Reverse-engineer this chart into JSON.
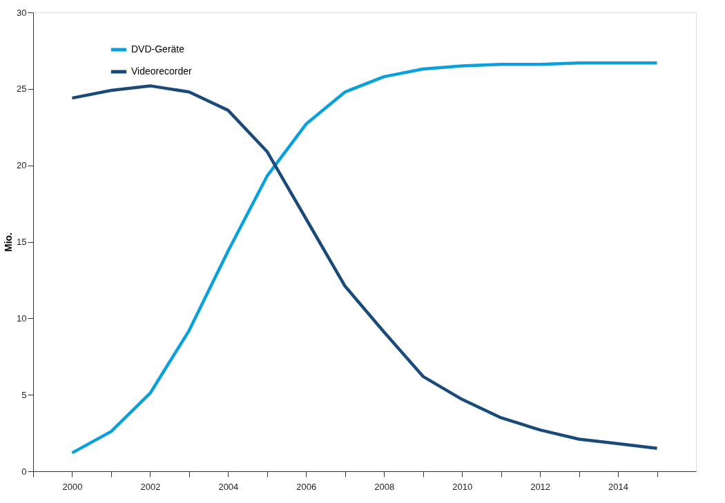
{
  "chart_data": {
    "type": "line",
    "ylabel": "Mio.",
    "x": [
      2000,
      2001,
      2002,
      2003,
      2004,
      2005,
      2006,
      2007,
      2008,
      2009,
      2010,
      2011,
      2012,
      2013,
      2014,
      2015
    ],
    "xlim": [
      1999,
      2016
    ],
    "xticks": [
      {
        "value": 1999,
        "label": null
      },
      2000,
      {
        "value": 2001,
        "label": null
      },
      2002,
      {
        "value": 2003,
        "label": null
      },
      2004,
      {
        "value": 2005,
        "label": null
      },
      2006,
      {
        "value": 2007,
        "label": null
      },
      2008,
      {
        "value": 2009,
        "label": null
      },
      2010,
      {
        "value": 2011,
        "label": null
      },
      2012,
      {
        "value": 2013,
        "label": null
      },
      2014,
      {
        "value": 2015,
        "label": null
      }
    ],
    "ylim": [
      0,
      30
    ],
    "yticks": [
      0,
      5,
      10,
      15,
      20,
      25,
      30
    ],
    "grid": false,
    "legend": "top left",
    "marker": "none",
    "line_style": "solid",
    "series": [
      {
        "name": "DVD-Geräte",
        "color": "#0aa0dc",
        "values": [
          1.2,
          2.6,
          5.1,
          9.2,
          14.4,
          19.3,
          22.7,
          24.8,
          25.8,
          26.3,
          26.5,
          26.6,
          26.6,
          26.7,
          26.7,
          26.7
        ]
      },
      {
        "name": "Videorecorder",
        "color": "#1a4a7a",
        "values": [
          24.4,
          24.9,
          25.2,
          24.8,
          23.6,
          20.9,
          16.5,
          12.1,
          9.1,
          6.2,
          4.7,
          3.5,
          2.7,
          2.1,
          1.8,
          1.5
        ]
      }
    ]
  }
}
